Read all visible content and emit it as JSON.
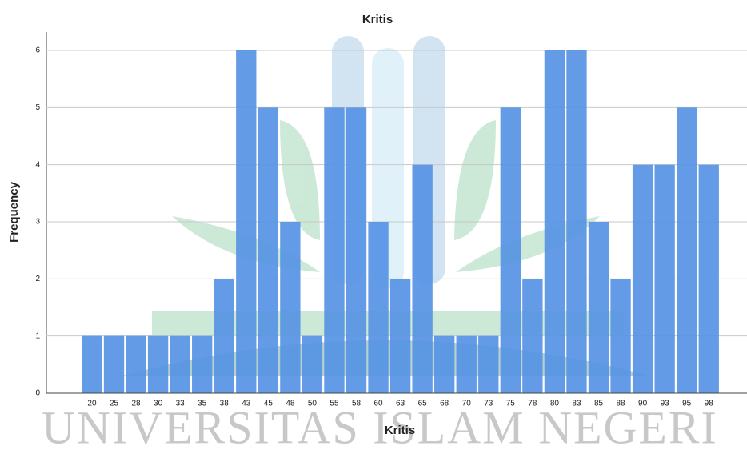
{
  "chart_data": {
    "type": "bar",
    "title": "Kritis",
    "x_label": "Kritis",
    "y_label": "Frequency",
    "watermark": "UNIVERSITAS ISLAM NEGERI",
    "categories": [
      "20",
      "25",
      "28",
      "30",
      "33",
      "35",
      "38",
      "43",
      "45",
      "48",
      "50",
      "55",
      "58",
      "60",
      "63",
      "65",
      "68",
      "70",
      "73",
      "75",
      "78",
      "80",
      "83",
      "85",
      "88",
      "90",
      "93",
      "95",
      "98"
    ],
    "values": [
      1,
      1,
      1,
      1,
      1,
      1,
      2,
      6,
      5,
      3,
      1,
      5,
      5,
      3,
      2,
      4,
      1,
      1,
      1,
      5,
      2,
      6,
      6,
      3,
      2,
      4,
      4,
      5,
      4
    ],
    "color": "#5692e4",
    "ylim": [
      0,
      6.3
    ],
    "yticks": [
      0,
      1,
      2,
      3,
      4,
      5,
      6
    ],
    "grid": true
  }
}
